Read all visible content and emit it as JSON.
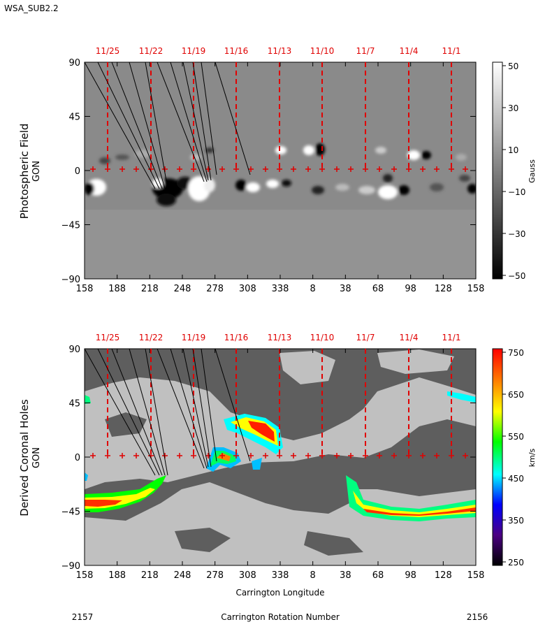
{
  "figure": {
    "corner_label": "WSA_SUB2.2",
    "bottom_left_label": "2157",
    "bottom_center_label": "Carrington Rotation Number",
    "bottom_right_label": "2156"
  },
  "colors": {
    "date_red": "#e00000",
    "panel_gray": "#8a8a8a",
    "hole_dark": "#5e5e5e",
    "hole_light": "#c0c0c0"
  },
  "chart_data": [
    {
      "type": "heatmap",
      "ylabel": "Photospheric Field",
      "ylabel2": "GON",
      "xlabel": "",
      "x_ticks": [
        "158",
        "188",
        "218",
        "248",
        "278",
        "308",
        "338",
        "8",
        "38",
        "68",
        "98",
        "128",
        "158"
      ],
      "y_ticks": [
        "90",
        "45",
        "0",
        "−45",
        "−90"
      ],
      "ylim": [
        -90,
        90
      ],
      "date_labels": [
        "11/25",
        "11/22",
        "11/19",
        "11/16",
        "11/13",
        "11/10",
        "11/7",
        "11/4",
        "11/1"
      ],
      "colorbar": {
        "label": "Gauss",
        "min": -50,
        "max": 50,
        "ticks": [
          "50",
          "30",
          "10",
          "−10",
          "−30",
          "−50"
        ],
        "stops": [
          "#000000",
          "#ffffff"
        ]
      }
    },
    {
      "type": "heatmap",
      "ylabel": "Derived Coronal Holes",
      "ylabel2": "GON",
      "xlabel": "Carrington Longitude",
      "x_ticks": [
        "158",
        "188",
        "218",
        "248",
        "278",
        "308",
        "338",
        "8",
        "38",
        "68",
        "98",
        "128",
        "158"
      ],
      "y_ticks": [
        "90",
        "45",
        "0",
        "−45",
        "−90"
      ],
      "ylim": [
        -90,
        90
      ],
      "date_labels": [
        "11/25",
        "11/22",
        "11/19",
        "11/16",
        "11/13",
        "11/10",
        "11/7",
        "11/4",
        "11/1"
      ],
      "colorbar": {
        "label": "km/s",
        "min": 250,
        "max": 750,
        "ticks": [
          "750",
          "650",
          "550",
          "450",
          "350",
          "250"
        ],
        "stops": [
          "#000000",
          "#4b0082",
          "#0000ff",
          "#00ffff",
          "#00ff00",
          "#ffff00",
          "#ff8000",
          "#ff0000"
        ]
      }
    }
  ]
}
